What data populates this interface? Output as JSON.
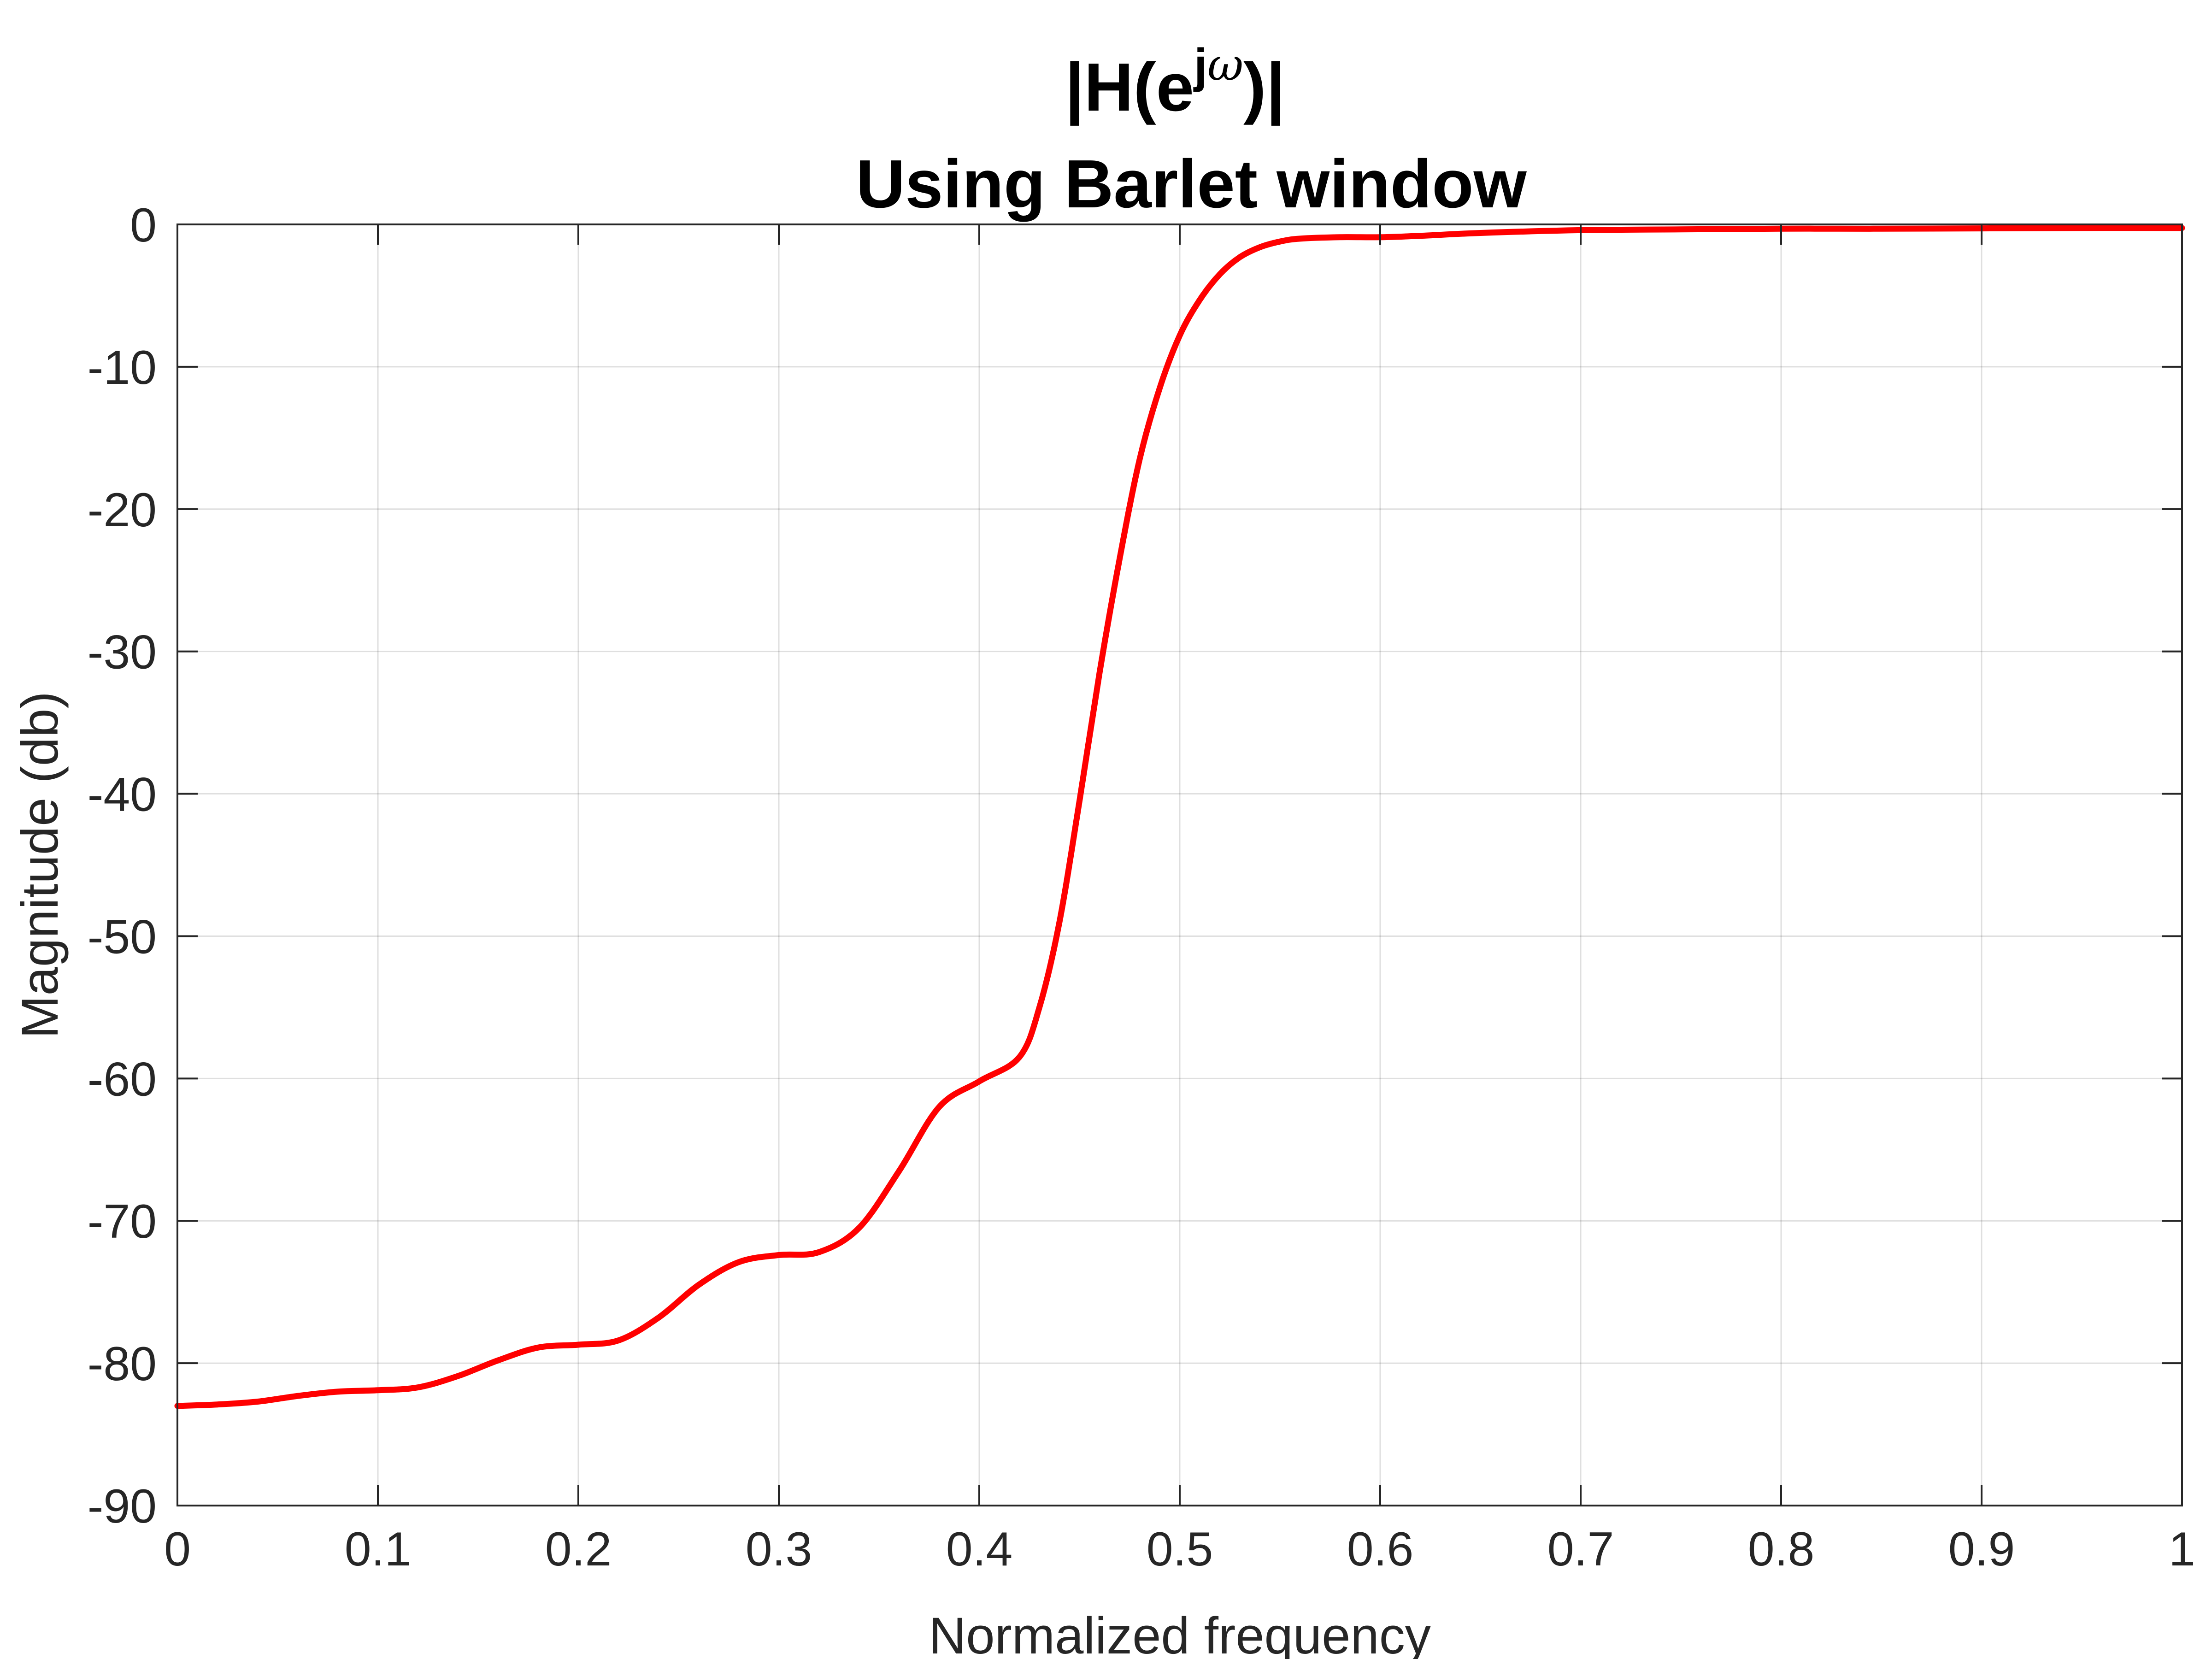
{
  "chart_data": {
    "type": "line",
    "title": {
      "line1_prefix": "|H(e",
      "line1_superscript": "j",
      "line1_omega": "ω",
      "line1_suffix": ")|",
      "line2": "Using Barlet window"
    },
    "xlabel": "Normalized frequency",
    "ylabel": "Magnitude (db)",
    "xlim": [
      0,
      1
    ],
    "ylim": [
      -90,
      0
    ],
    "xticks": [
      0,
      0.1,
      0.2,
      0.3,
      0.4,
      0.5,
      0.6,
      0.7,
      0.8,
      0.9,
      1
    ],
    "xtick_labels": [
      "0",
      "0.1",
      "0.2",
      "0.3",
      "0.4",
      "0.5",
      "0.6",
      "0.7",
      "0.8",
      "0.9",
      "1"
    ],
    "yticks": [
      0,
      -10,
      -20,
      -30,
      -40,
      -50,
      -60,
      -70,
      -80,
      -90
    ],
    "ytick_labels": [
      "0",
      "-10",
      "-20",
      "-30",
      "-40",
      "-50",
      "-60",
      "-70",
      "-80",
      "-90"
    ],
    "grid": true,
    "legend": "none",
    "series": [
      {
        "color": "#ff0000",
        "x": [
          0,
          0.02,
          0.04,
          0.06,
          0.08,
          0.1,
          0.12,
          0.14,
          0.16,
          0.18,
          0.2,
          0.22,
          0.24,
          0.26,
          0.28,
          0.3,
          0.32,
          0.34,
          0.36,
          0.38,
          0.4,
          0.42,
          0.43,
          0.44,
          0.45,
          0.46,
          0.47,
          0.48,
          0.49,
          0.5,
          0.51,
          0.52,
          0.53,
          0.54,
          0.55,
          0.56,
          0.58,
          0.6,
          0.62,
          0.65,
          0.7,
          0.75,
          0.8,
          0.85,
          0.9,
          0.95,
          1.0
        ],
        "y": [
          -83.0,
          -82.9,
          -82.7,
          -82.3,
          -82.0,
          -81.9,
          -81.7,
          -80.9,
          -79.8,
          -78.9,
          -78.7,
          -78.4,
          -76.8,
          -74.5,
          -72.9,
          -72.4,
          -72.2,
          -70.5,
          -66.5,
          -62.0,
          -60.2,
          -58.5,
          -55.0,
          -49.0,
          -40.5,
          -31.5,
          -23.5,
          -16.5,
          -11.5,
          -7.8,
          -5.3,
          -3.5,
          -2.3,
          -1.6,
          -1.2,
          -1.0,
          -0.9,
          -0.9,
          -0.8,
          -0.6,
          -0.4,
          -0.35,
          -0.3,
          -0.3,
          -0.28,
          -0.25,
          -0.25
        ]
      }
    ]
  }
}
